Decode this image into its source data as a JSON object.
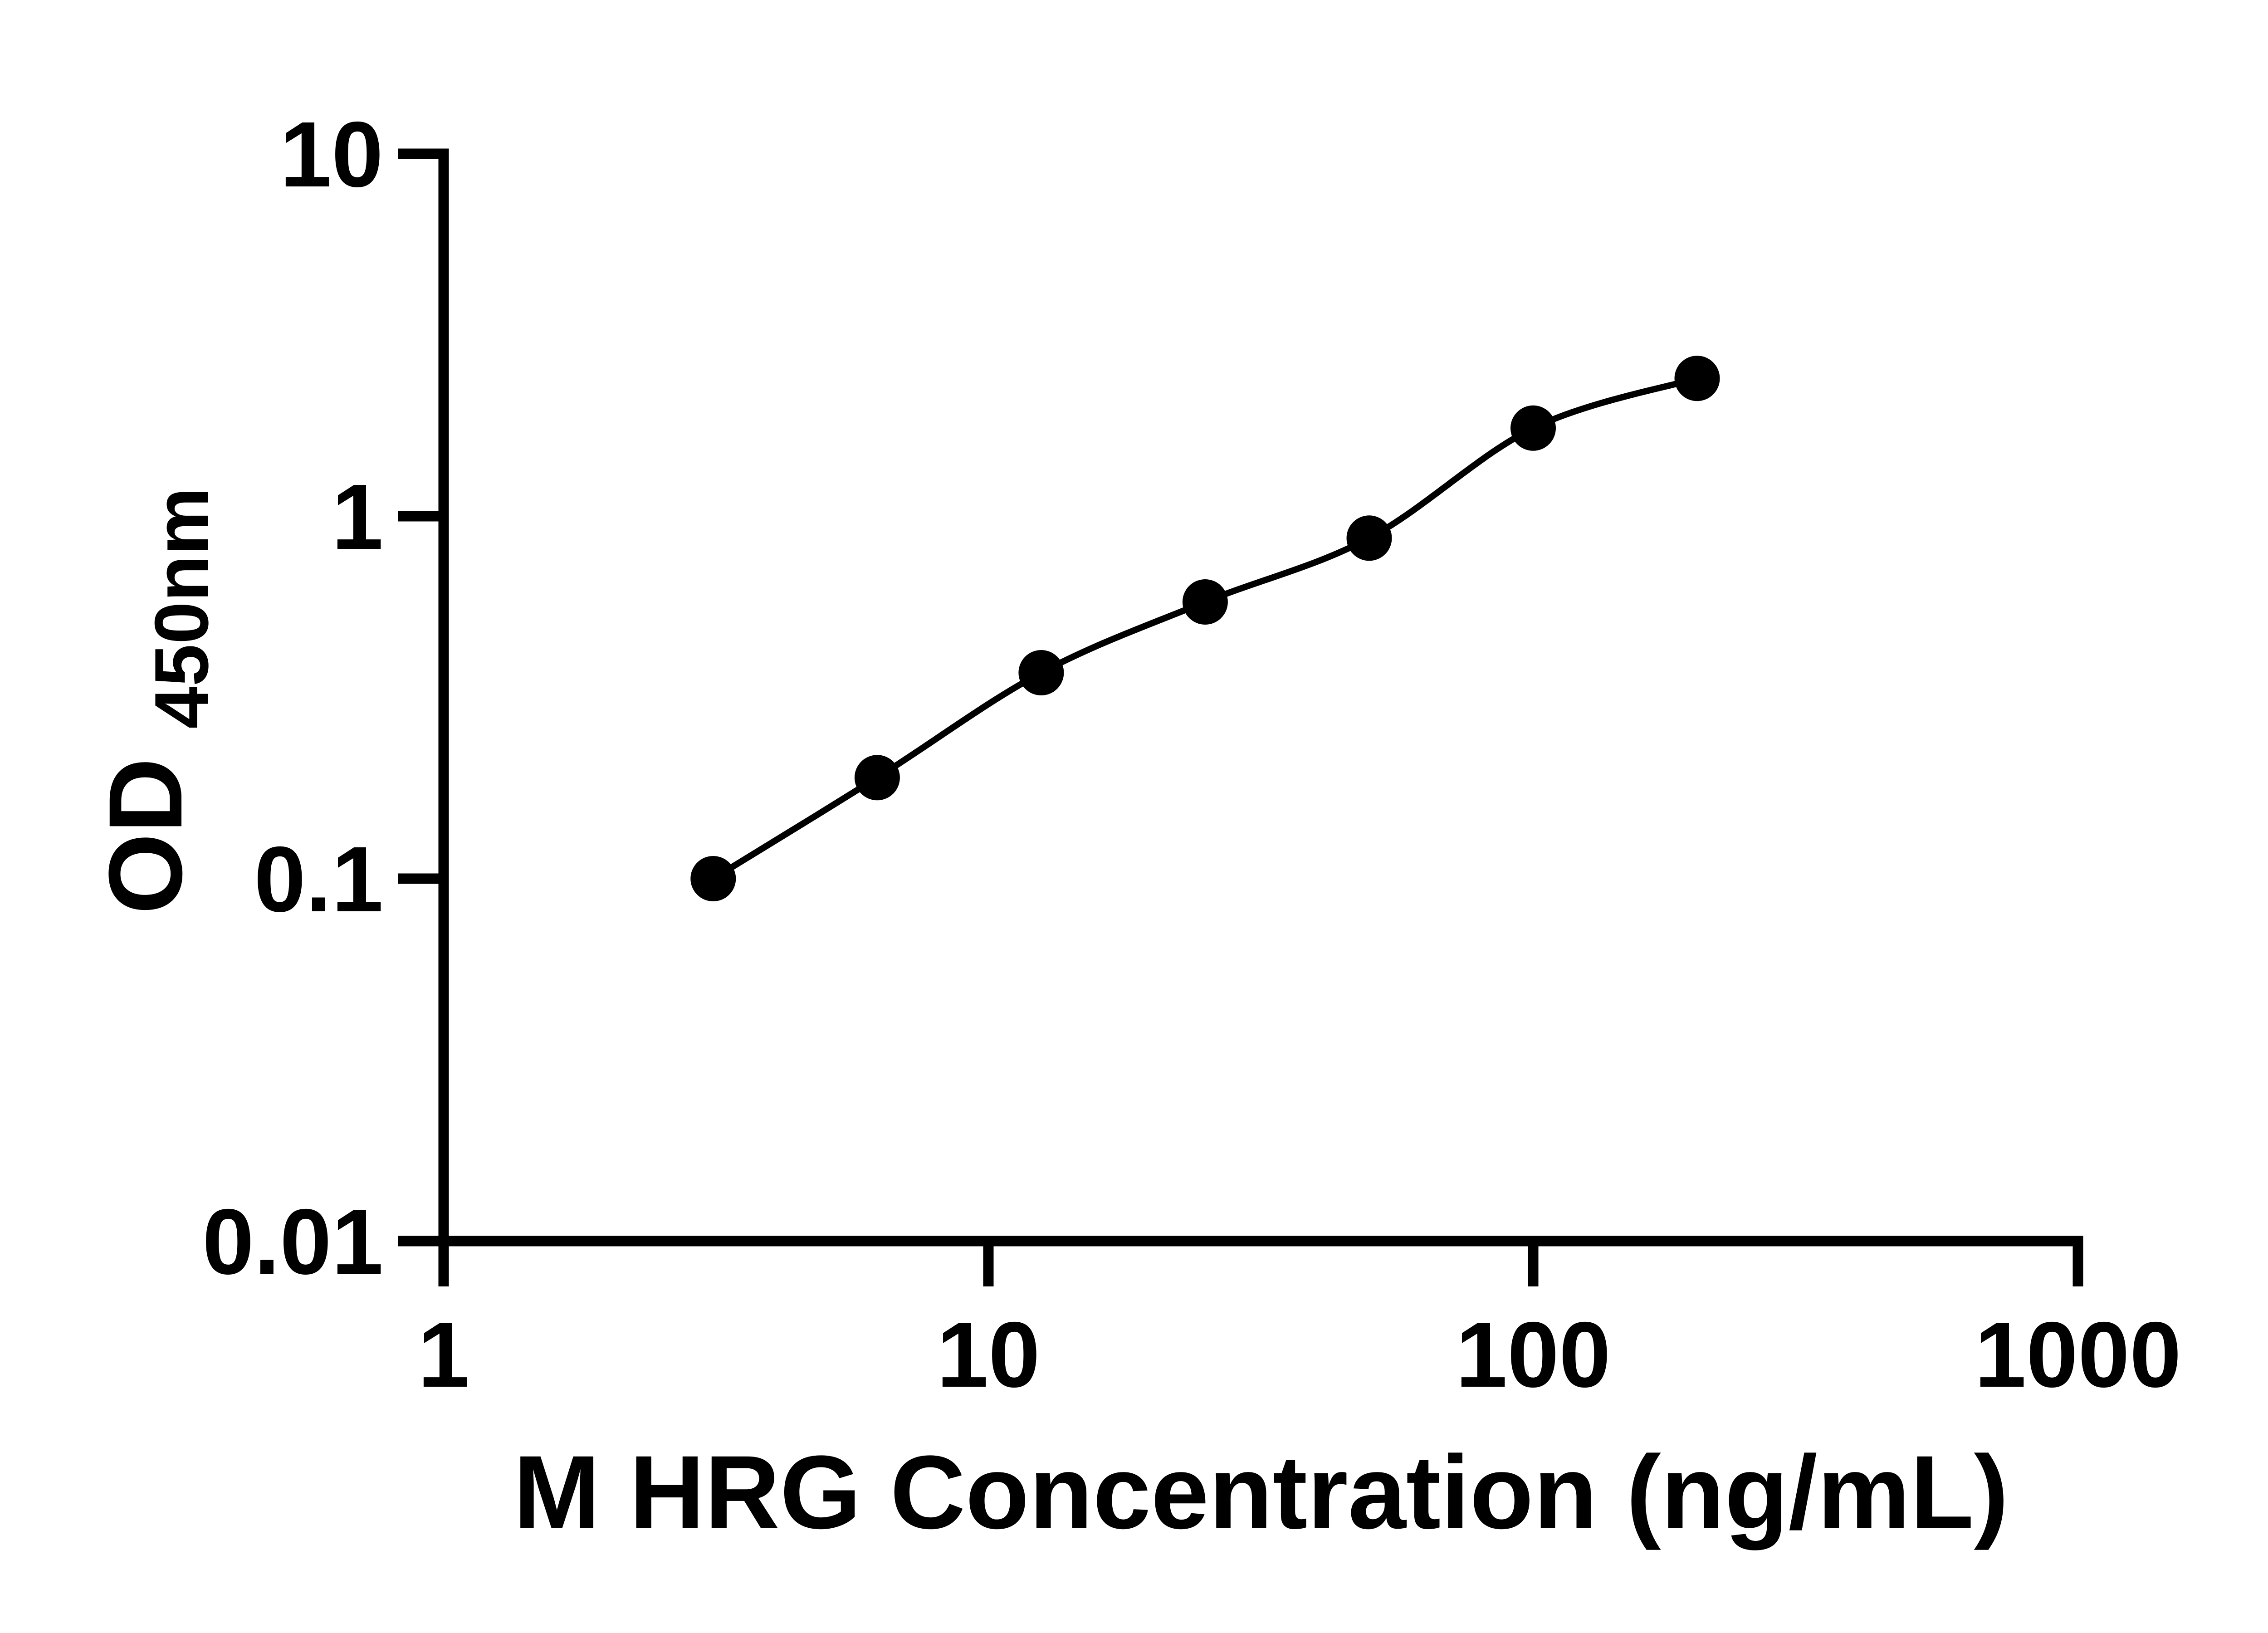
{
  "chart_data": {
    "type": "scatter",
    "title": "",
    "xlabel": "M HRG Concentration (ng/mL)",
    "ylabel": "OD450nm",
    "ylabel_main": "OD",
    "ylabel_sub": "450nm",
    "x_scale": "log10",
    "y_scale": "log10",
    "xlim": [
      1,
      1000
    ],
    "ylim": [
      0.01,
      10
    ],
    "grid": false,
    "legend_position": "none",
    "x_ticks": [
      {
        "value": 1,
        "label": "1"
      },
      {
        "value": 10,
        "label": "10"
      },
      {
        "value": 100,
        "label": "100"
      },
      {
        "value": 1000,
        "label": "1000"
      }
    ],
    "y_ticks": [
      {
        "value": 10,
        "label": "10"
      },
      {
        "value": 1,
        "label": "1"
      },
      {
        "value": 0.1,
        "label": "0.1"
      },
      {
        "value": 0.01,
        "label": "0.01"
      }
    ],
    "series": [
      {
        "marker": "filled-circle",
        "line": "smooth-fit-curve",
        "color": "#000000",
        "points": [
          {
            "x": 3.125,
            "y": 0.1
          },
          {
            "x": 6.25,
            "y": 0.19
          },
          {
            "x": 12.5,
            "y": 0.37
          },
          {
            "x": 25,
            "y": 0.58
          },
          {
            "x": 50,
            "y": 0.87
          },
          {
            "x": 100,
            "y": 1.75
          },
          {
            "x": 200,
            "y": 2.4
          }
        ]
      }
    ],
    "colors": {
      "foreground": "#000000",
      "background": "#ffffff"
    }
  }
}
